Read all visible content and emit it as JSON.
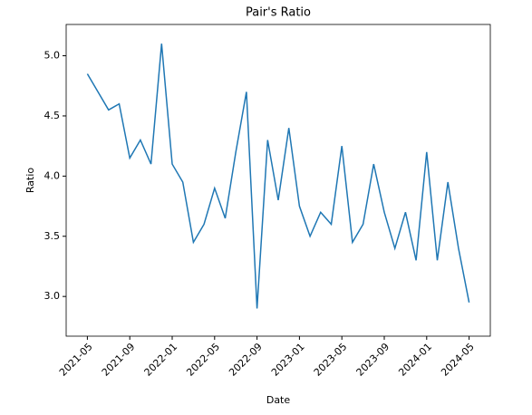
{
  "chart_data": {
    "type": "line",
    "title": "Pair's Ratio",
    "x_label": "Date",
    "y_label": "Ratio",
    "x": [
      "2021-05",
      "2021-06",
      "2021-07",
      "2021-08",
      "2021-09",
      "2021-10",
      "2021-11",
      "2021-12",
      "2022-01",
      "2022-02",
      "2022-03",
      "2022-04",
      "2022-05",
      "2022-06",
      "2022-07",
      "2022-08",
      "2022-09",
      "2022-10",
      "2022-11",
      "2022-12",
      "2023-01",
      "2023-02",
      "2023-03",
      "2023-04",
      "2023-05",
      "2023-06",
      "2023-07",
      "2023-08",
      "2023-09",
      "2023-10",
      "2023-11",
      "2023-12",
      "2024-01",
      "2024-02",
      "2024-03",
      "2024-04",
      "2024-05"
    ],
    "series": [
      {
        "name": "Ratio",
        "color": "#1f77b4",
        "values": [
          4.85,
          4.7,
          4.55,
          4.6,
          4.15,
          4.3,
          4.1,
          5.1,
          4.1,
          3.95,
          3.45,
          3.6,
          3.9,
          3.65,
          4.2,
          4.7,
          2.9,
          4.3,
          3.8,
          4.4,
          3.75,
          3.5,
          3.7,
          3.6,
          4.25,
          3.45,
          3.6,
          4.1,
          3.7,
          3.4,
          3.7,
          3.3,
          4.2,
          3.3,
          3.95,
          3.4,
          2.95
        ]
      }
    ],
    "xlim": [
      "2021-03",
      "2024-07"
    ],
    "xticks": [
      "2021-05",
      "2021-09",
      "2022-01",
      "2022-05",
      "2022-09",
      "2023-01",
      "2023-05",
      "2023-09",
      "2024-01",
      "2024-05"
    ],
    "ylim": [
      2.67,
      5.26
    ],
    "yticks": [
      {
        "value": 3,
        "label": "3.0"
      },
      {
        "value": 3.5,
        "label": "3.5"
      },
      {
        "value": 4,
        "label": "4.0"
      },
      {
        "value": 4.5,
        "label": "4.5"
      },
      {
        "value": 5,
        "label": "5.0"
      }
    ]
  }
}
